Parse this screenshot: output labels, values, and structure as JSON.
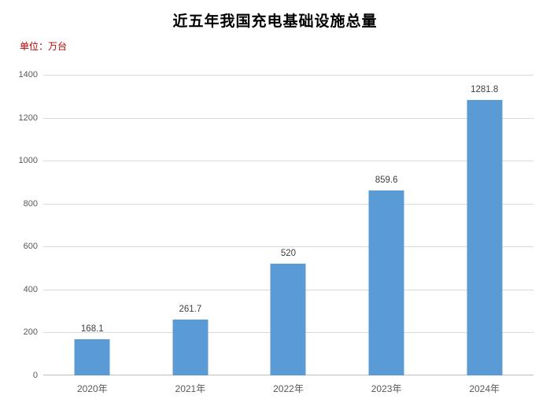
{
  "chart_data": {
    "type": "bar",
    "title": "近五年我国充电基础设施总量",
    "unit_label": "单位：万台",
    "categories": [
      "2020年",
      "2021年",
      "2022年",
      "2023年",
      "2024年"
    ],
    "values": [
      168.1,
      261.7,
      520,
      859.6,
      1281.8
    ],
    "data_labels": [
      "168.1",
      "261.7",
      "520",
      "859.6",
      "1281.8"
    ],
    "xlabel": "",
    "ylabel": "",
    "ylim": [
      0,
      1400
    ],
    "yticks": [
      0,
      200,
      400,
      600,
      800,
      1000,
      1200,
      1400
    ],
    "grid": true,
    "legend_position": "none",
    "colors": {
      "bar": "#5B9BD5",
      "gridline": "#D9D9D9",
      "axis_line": "#BFBFBF",
      "tick_label": "#595959",
      "data_label": "#404040",
      "title": "#000000",
      "unit_label": "#C00000",
      "background": "#FFFFFF"
    }
  }
}
